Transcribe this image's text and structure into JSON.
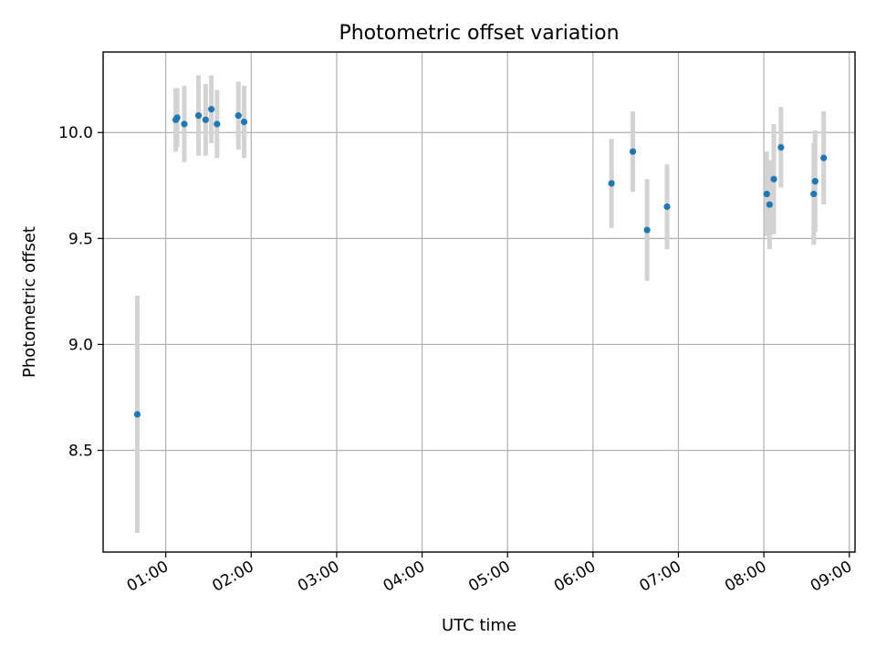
{
  "chart_data": {
    "type": "scatter",
    "title": "Photometric offset variation",
    "xlabel": "UTC time",
    "ylabel": "Photometric offset",
    "grid": true,
    "x_tick_labels": [
      "01:00",
      "02:00",
      "03:00",
      "04:00",
      "05:00",
      "06:00",
      "07:00",
      "08:00",
      "09:00"
    ],
    "y_tick_labels": [
      "8.5",
      "9.0",
      "9.5",
      "10.0"
    ],
    "y_ticks": [
      8.5,
      9.0,
      9.5,
      10.0
    ],
    "xlim": [
      "00:16",
      "09:04"
    ],
    "ylim": [
      8.02,
      10.38
    ],
    "colors": {
      "point": "#1f77b4",
      "errorbar": "#d3d3d3"
    },
    "series": [
      {
        "points": [
          {
            "x": "00:40",
            "y": 8.67,
            "err": 0.56
          },
          {
            "x": "01:07",
            "y": 10.06,
            "err": 0.15
          },
          {
            "x": "01:08",
            "y": 10.07,
            "err": 0.14
          },
          {
            "x": "01:13",
            "y": 10.04,
            "err": 0.18
          },
          {
            "x": "01:23",
            "y": 10.08,
            "err": 0.19
          },
          {
            "x": "01:28",
            "y": 10.06,
            "err": 0.17
          },
          {
            "x": "01:32",
            "y": 10.11,
            "err": 0.16
          },
          {
            "x": "01:36",
            "y": 10.04,
            "err": 0.16
          },
          {
            "x": "01:51",
            "y": 10.08,
            "err": 0.16
          },
          {
            "x": "01:55",
            "y": 10.05,
            "err": 0.17
          },
          {
            "x": "06:13",
            "y": 9.76,
            "err": 0.21
          },
          {
            "x": "06:28",
            "y": 9.91,
            "err": 0.19
          },
          {
            "x": "06:38",
            "y": 9.54,
            "err": 0.24
          },
          {
            "x": "06:52",
            "y": 9.65,
            "err": 0.2
          },
          {
            "x": "08:02",
            "y": 9.71,
            "err": 0.2
          },
          {
            "x": "08:04",
            "y": 9.66,
            "err": 0.21
          },
          {
            "x": "08:07",
            "y": 9.78,
            "err": 0.26
          },
          {
            "x": "08:12",
            "y": 9.93,
            "err": 0.19
          },
          {
            "x": "08:35",
            "y": 9.71,
            "err": 0.24
          },
          {
            "x": "08:36",
            "y": 9.77,
            "err": 0.24
          },
          {
            "x": "08:42",
            "y": 9.88,
            "err": 0.22
          }
        ]
      }
    ]
  }
}
